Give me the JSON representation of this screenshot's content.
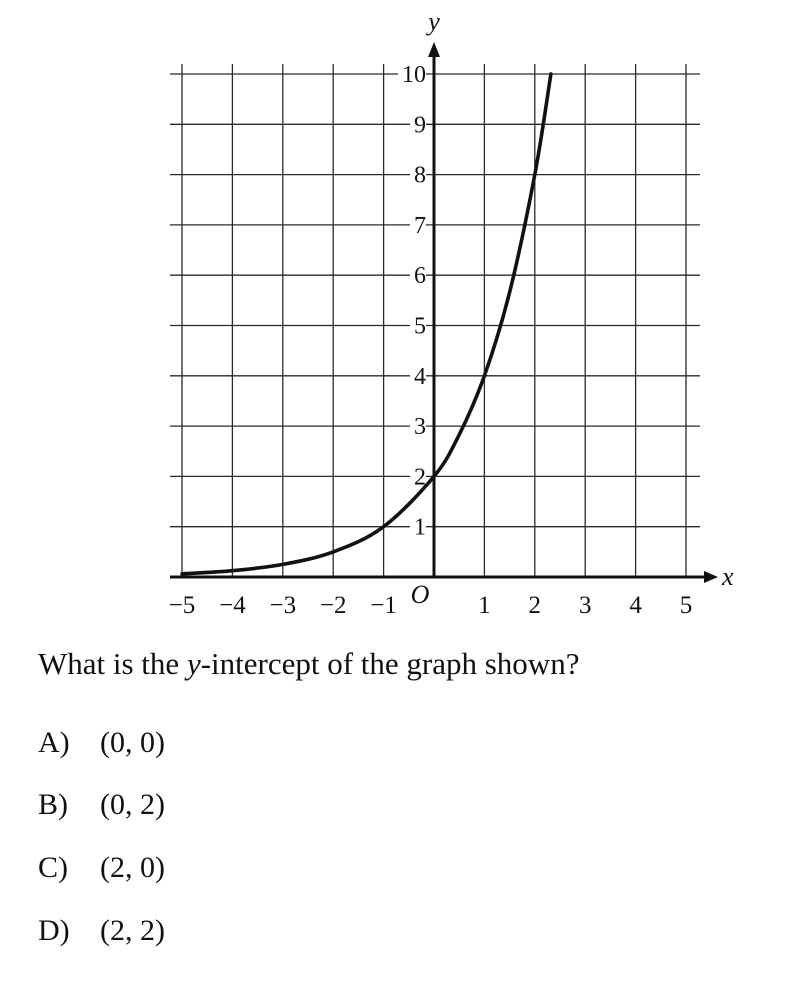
{
  "chart_data": {
    "type": "line",
    "xlabel": "x",
    "ylabel": "y",
    "origin_label": "O",
    "xlim": [
      -5,
      5
    ],
    "ylim": [
      0,
      10
    ],
    "x_ticks": [
      -5,
      -4,
      -3,
      -2,
      -1,
      1,
      2,
      3,
      4,
      5
    ],
    "x_tick_labels": [
      "−5",
      "−4",
      "−3",
      "−2",
      "−1",
      "1",
      "2",
      "3",
      "4",
      "5"
    ],
    "y_ticks": [
      1,
      2,
      3,
      4,
      5,
      6,
      7,
      8,
      9,
      10
    ],
    "y_tick_labels": [
      "1",
      "2",
      "3",
      "4",
      "5",
      "6",
      "7",
      "8",
      "9",
      "10"
    ],
    "grid": true,
    "series": [
      {
        "x": [
          -5,
          -4,
          -3,
          -2,
          -1,
          0,
          0.5,
          1,
          1.5,
          2,
          2.32
        ],
        "y": [
          0.0625,
          0.125,
          0.25,
          0.5,
          1,
          2,
          2.83,
          4,
          5.66,
          8,
          10
        ]
      }
    ]
  },
  "question": {
    "before": "What is the ",
    "var": "y",
    "after": "-intercept of the graph shown?"
  },
  "choices": [
    {
      "letter": "A)",
      "text": "(0, 0)"
    },
    {
      "letter": "B)",
      "text": "(0, 2)"
    },
    {
      "letter": "C)",
      "text": "(2, 0)"
    },
    {
      "letter": "D)",
      "text": "(2, 2)"
    }
  ]
}
